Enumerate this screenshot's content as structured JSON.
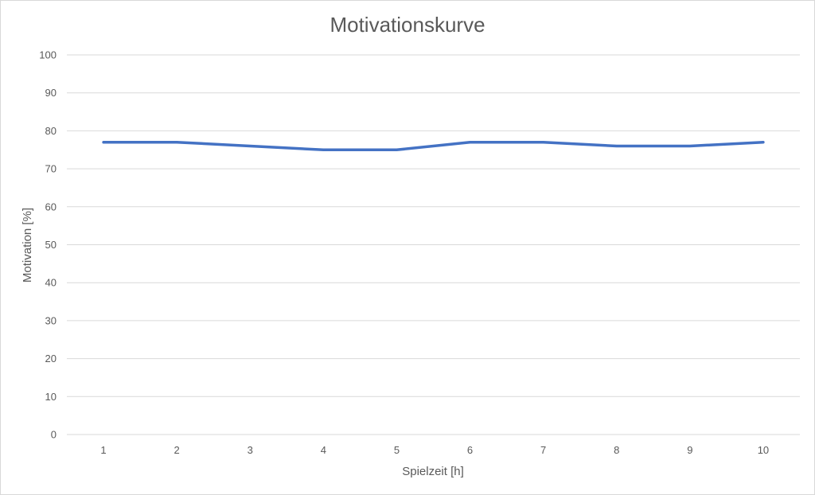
{
  "chart_data": {
    "type": "line",
    "title": "Motivationskurve",
    "xlabel": "Spielzeit [h]",
    "ylabel": "Motivation [%]",
    "categories": [
      "1",
      "2",
      "3",
      "4",
      "5",
      "6",
      "7",
      "8",
      "9",
      "10"
    ],
    "series": [
      {
        "values": [
          77,
          77,
          76,
          75,
          75,
          77,
          77,
          76,
          76,
          77
        ],
        "color": "#4472c4"
      }
    ],
    "ylim": [
      0,
      100
    ],
    "yticks": [
      0,
      10,
      20,
      30,
      40,
      50,
      60,
      70,
      80,
      90,
      100
    ],
    "grid": true,
    "legend": "none"
  }
}
